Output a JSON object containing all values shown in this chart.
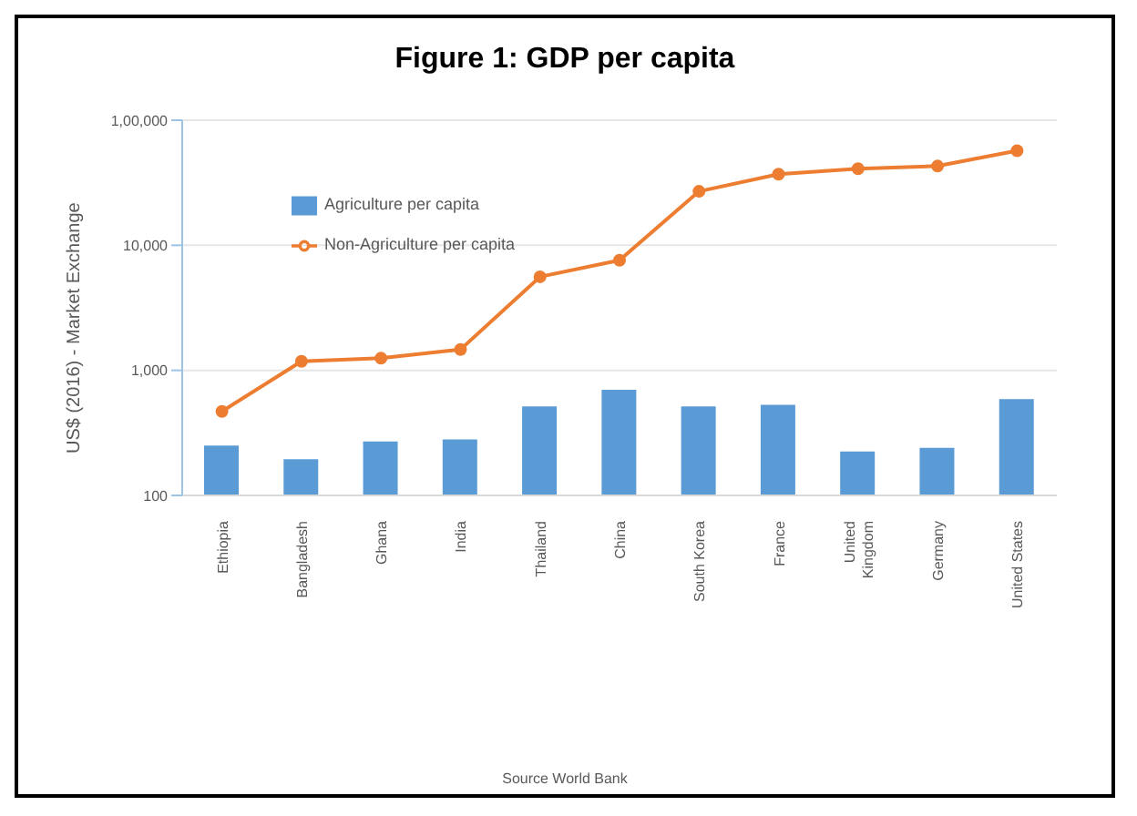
{
  "chart_data": {
    "type": "bar",
    "title": "Figure 1: GDP per capita",
    "ylabel": "US$ (2016) - Market Exchange",
    "annotations": [
      "Source World Bank"
    ],
    "categories": [
      "Ethiopia",
      "Bangladesh",
      "Ghana",
      "India",
      "Thailand",
      "China",
      "South Korea",
      "France",
      "United Kingdom",
      "Germany",
      "United States"
    ],
    "series": [
      {
        "name": "Agriculture per capita",
        "color": "#5b9bd5",
        "values": [
          250,
          195,
          270,
          280,
          515,
          700,
          515,
          530,
          225,
          240,
          590
        ]
      },
      {
        "name": "Non-Agriculture per capita",
        "type": "line",
        "color": "#ed7d31",
        "values": [
          470,
          1180,
          1250,
          1470,
          5600,
          7600,
          27000,
          37000,
          41000,
          43000,
          57000
        ]
      }
    ],
    "log": "y",
    "ylim": [
      100,
      100000
    ],
    "yticks": [
      {
        "value": 100,
        "label": "100"
      },
      {
        "value": 1000,
        "label": "1,000"
      },
      {
        "value": 10000,
        "label": "10,000"
      },
      {
        "value": 100000,
        "label": "1,00,000"
      }
    ],
    "grid": "y",
    "legend": "top left",
    "marker": "circle"
  }
}
